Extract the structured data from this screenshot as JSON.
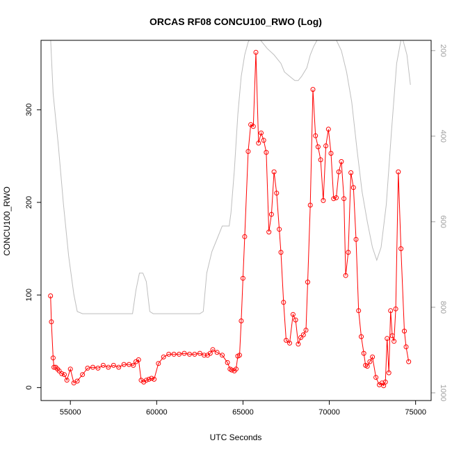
{
  "chart_data": {
    "type": "line",
    "title": "ORCAS RF08 CONCU100_RWO (Log)",
    "xlabel": "UTC Seconds",
    "ylabel": "CONCU100_RWO",
    "xlim": [
      53300,
      75900
    ],
    "ylim": [
      -14,
      375
    ],
    "x_ticks": [
      55000,
      60000,
      65000,
      70000,
      75000
    ],
    "y_ticks": [
      0,
      100,
      200,
      300
    ],
    "secondary_axis": {
      "side": "right",
      "inverted": true,
      "ylim": [
        176,
        1018
      ],
      "ticks": [
        200,
        400,
        600,
        800,
        1000
      ],
      "color": "#a0a0a0"
    },
    "grid": false,
    "series": [
      {
        "color": "#ff0000",
        "marker": "circle-open",
        "x": [
          53850,
          53900,
          54000,
          54050,
          54150,
          54250,
          54350,
          54500,
          54650,
          54800,
          55000,
          55200,
          55400,
          55700,
          56000,
          56300,
          56600,
          56900,
          57200,
          57500,
          57800,
          58100,
          58400,
          58650,
          58800,
          58950,
          59100,
          59250,
          59400,
          59550,
          59700,
          59850,
          60100,
          60400,
          60700,
          61000,
          61300,
          61600,
          61900,
          62200,
          62500,
          62750,
          62950,
          63100,
          63250,
          63500,
          63800,
          64100,
          64250,
          64350,
          64500,
          64600,
          64700,
          64800,
          64900,
          65000,
          65100,
          65300,
          65450,
          65600,
          65750,
          65900,
          66050,
          66200,
          66350,
          66500,
          66650,
          66800,
          66950,
          67100,
          67200,
          67350,
          67500,
          67700,
          67900,
          68050,
          68200,
          68350,
          68500,
          68650,
          68750,
          68900,
          69050,
          69200,
          69350,
          69500,
          69650,
          69800,
          69950,
          70100,
          70250,
          70400,
          70550,
          70700,
          70850,
          70950,
          71100,
          71250,
          71400,
          71550,
          71700,
          71850,
          72000,
          72100,
          72200,
          72350,
          72500,
          72700,
          72900,
          73050,
          73150,
          73250,
          73350,
          73450,
          73550,
          73650,
          73750,
          73850,
          74000,
          74150,
          74350,
          74450,
          74600
        ],
        "y": [
          99,
          71,
          32,
          22,
          22,
          20,
          18,
          15,
          14,
          8,
          20,
          5,
          7,
          14,
          21,
          22,
          21,
          24,
          22,
          24,
          22,
          25,
          25,
          24,
          28,
          30,
          8,
          6,
          8,
          9,
          10,
          9,
          26,
          33,
          36,
          36,
          36,
          37,
          36,
          36,
          37,
          35,
          35,
          37,
          41,
          38,
          35,
          27,
          20,
          19,
          18,
          20,
          34,
          35,
          72,
          118,
          163,
          255,
          284,
          282,
          362,
          264,
          275,
          267,
          254,
          168,
          187,
          233,
          210,
          171,
          146,
          92,
          51,
          48,
          79,
          73,
          47,
          54,
          57,
          62,
          114,
          197,
          322,
          272,
          260,
          246,
          202,
          261,
          279,
          253,
          204,
          205,
          233,
          244,
          204,
          121,
          146,
          232,
          216,
          160,
          83,
          55,
          37,
          24,
          23,
          28,
          33,
          11,
          3,
          5,
          2,
          6,
          53,
          16,
          83,
          56,
          50,
          85,
          233,
          150,
          61,
          44,
          28
        ]
      },
      {
        "color": "#bebebe",
        "axis": "secondary",
        "marker": "none",
        "x": [
          53850,
          54000,
          54300,
          54600,
          54900,
          55200,
          55400,
          55700,
          56000,
          57000,
          58000,
          58600,
          58800,
          59000,
          59200,
          59400,
          59600,
          59800,
          60000,
          60500,
          61000,
          62000,
          62500,
          62700,
          62900,
          63200,
          63500,
          63800,
          64000,
          64200,
          64300,
          64500,
          64700,
          64900,
          65100,
          65300,
          65500,
          65700,
          66000,
          66400,
          66800,
          67200,
          67400,
          67700,
          68000,
          68200,
          68400,
          68700,
          68900,
          69100,
          69300,
          69500,
          69800,
          70100,
          70400,
          70700,
          71000,
          71300,
          71600,
          71900,
          72200,
          72500,
          72750,
          73000,
          73300,
          73600,
          73900,
          74200,
          74500,
          74700
        ],
        "y": [
          170,
          300,
          420,
          560,
          680,
          770,
          810,
          815,
          815,
          815,
          815,
          815,
          760,
          720,
          720,
          740,
          810,
          815,
          815,
          815,
          815,
          815,
          815,
          810,
          720,
          670,
          640,
          610,
          610,
          610,
          580,
          480,
          350,
          260,
          210,
          180,
          165,
          165,
          175,
          195,
          210,
          230,
          250,
          260,
          270,
          270,
          260,
          240,
          210,
          190,
          175,
          170,
          170,
          170,
          175,
          200,
          250,
          320,
          430,
          530,
          600,
          660,
          690,
          660,
          560,
          390,
          230,
          165,
          210,
          280
        ]
      }
    ]
  }
}
